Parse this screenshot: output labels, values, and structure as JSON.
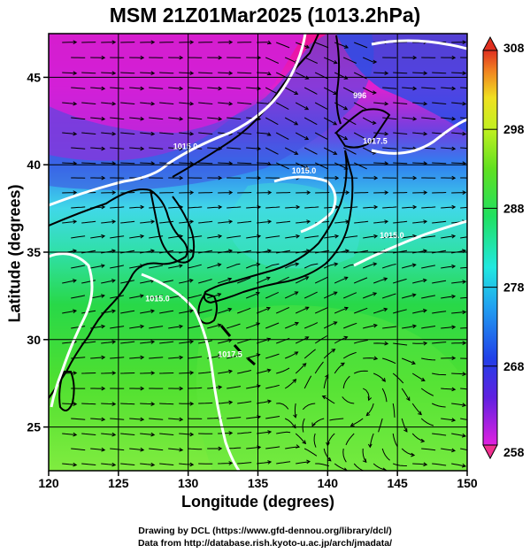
{
  "title": "MSM 21Z01Mar2025 (1013.2hPa)",
  "colors": {
    "polar": "#e020c8",
    "cold": "#2040e0",
    "cool": "#20e8e0",
    "mild": "#20d820",
    "warm": "#a0f040",
    "coast": "#000000",
    "isobar": "#ffffff"
  },
  "chart_data": {
    "type": "map",
    "xlabel": "Longitude (degrees)",
    "ylabel": "Latitude  (degrees)",
    "xlim": [
      120,
      150
    ],
    "ylim": [
      22.5,
      47.5
    ],
    "xticks": [
      120,
      125,
      130,
      135,
      140,
      145,
      150
    ],
    "yticks": [
      25,
      30,
      35,
      40,
      45
    ],
    "colorbar": {
      "min": 258,
      "max": 308,
      "ticks": [
        258,
        268,
        278,
        288,
        298,
        308
      ]
    },
    "isobar_labels": [
      {
        "text": "1015.0",
        "lon": 129.8,
        "lat": 40.9
      },
      {
        "text": "1015.0",
        "lon": 138.3,
        "lat": 39.5
      },
      {
        "text": "1015.0",
        "lon": 144.6,
        "lat": 35.8
      },
      {
        "text": "1015.0",
        "lon": 127.8,
        "lat": 32.2
      },
      {
        "text": "1017.5",
        "lon": 133.0,
        "lat": 29.0
      },
      {
        "text": "1017.5",
        "lon": 143.4,
        "lat": 41.2
      },
      {
        "text": "996",
        "lon": 142.3,
        "lat": 43.8
      }
    ]
  },
  "credits": {
    "line1": "Drawing by DCL (https://www.gfd-dennou.org/library/dcl/)",
    "line2": "Data from http://database.rish.kyoto-u.ac.jp/arch/jmadata/"
  }
}
